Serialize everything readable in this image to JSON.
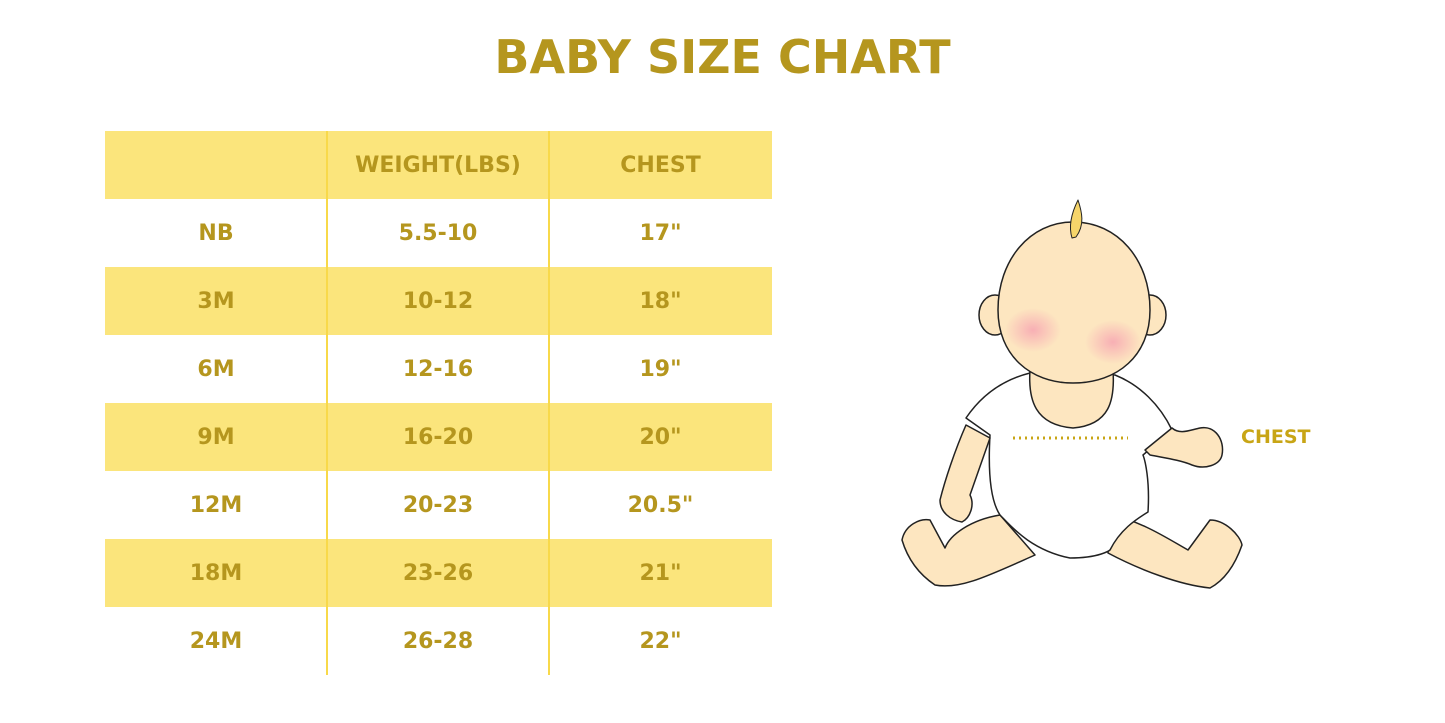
{
  "title": "BABY SIZE CHART",
  "table": {
    "headers": [
      "",
      "WEIGHT(LBS)",
      "CHEST"
    ],
    "rows": [
      [
        "NB",
        "5.5-10",
        "17\""
      ],
      [
        "3M",
        "10-12",
        "18\""
      ],
      [
        "6M",
        "12-16",
        "19\""
      ],
      [
        "9M",
        "16-20",
        "20\""
      ],
      [
        "12M",
        "20-23",
        "20.5\""
      ],
      [
        "18M",
        "23-26",
        "21\""
      ],
      [
        "24M",
        "26-28",
        "22\""
      ]
    ]
  },
  "illustration": {
    "chest_label": "CHEST"
  },
  "colors": {
    "accent": "#b5961e",
    "band": "#fbe57c",
    "skin": "#fde6c0"
  }
}
